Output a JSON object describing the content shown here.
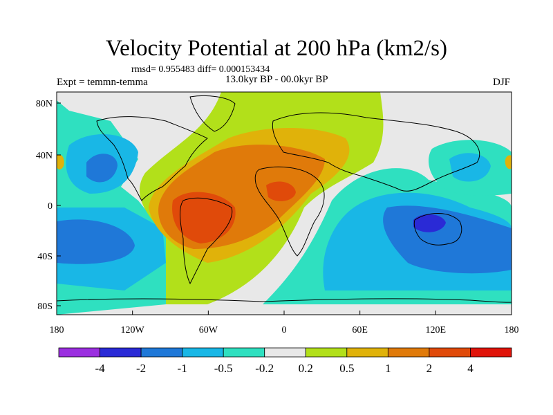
{
  "title": "Velocity Potential at 200 hPa (km2/s)",
  "stats": "rmsd= 0.955483 diff= 0.000153434",
  "experiment": "Expt = temmn-temma",
  "period": "13.0kyr BP - 00.0kyr BP",
  "season": "DJF",
  "x_ticks": [
    "180",
    "120W",
    "60W",
    "0",
    "60E",
    "120E",
    "180"
  ],
  "y_ticks": [
    "80N",
    "40N",
    "0",
    "40S",
    "80S"
  ],
  "colorbar": {
    "colors": [
      "#9b2fe0",
      "#2a2ad6",
      "#1f78d8",
      "#19b7e6",
      "#2fe0c0",
      "#e8e8e8",
      "#b2e01a",
      "#e0b20a",
      "#e07a0a",
      "#e04a0a",
      "#e0140a"
    ],
    "labels": [
      "-4",
      "-2",
      "-1",
      "-0.5",
      "-0.2",
      "0.2",
      "0.5",
      "1",
      "2",
      "4"
    ]
  },
  "colors": {
    "land_outline": "#000000",
    "background_zero": "#e8e8e8"
  }
}
